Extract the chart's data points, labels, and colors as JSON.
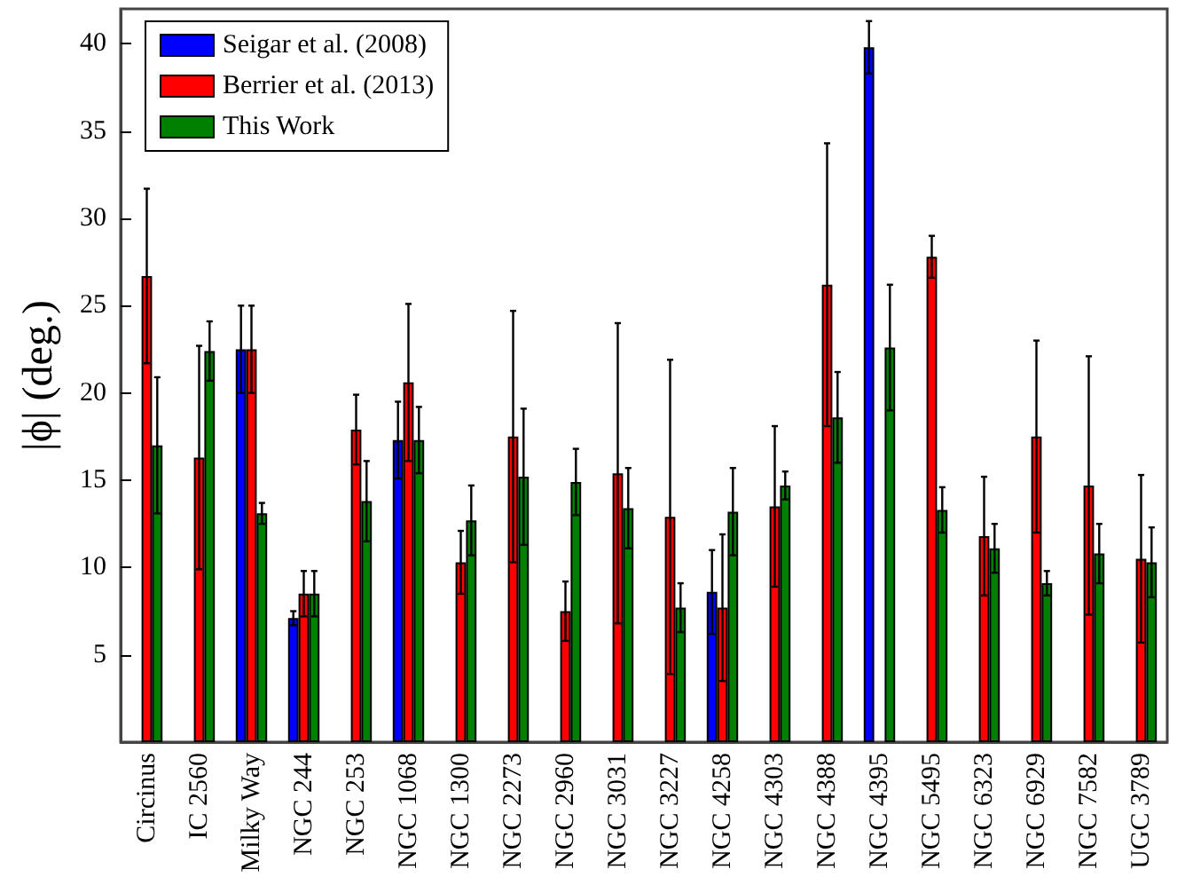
{
  "chart_data": {
    "type": "bar",
    "ylabel": "|ϕ| (deg.)",
    "categories": [
      "Circinus",
      "IC 2560",
      "Milky Way",
      "NGC 244",
      "NGC 253",
      "NGC 1068",
      "NGC 1300",
      "NGC 2273",
      "NGC 2960",
      "NGC 3031",
      "NGC 3227",
      "NGC 4258",
      "NGC 4303",
      "NGC 4388",
      "NGC 4395",
      "NGC 5495",
      "NGC 6323",
      "NGC 6929",
      "NGC 7582",
      "UGC 3789"
    ],
    "series": [
      {
        "name": "Seigar et al. (2008)",
        "color": "#0000ff",
        "values": [
          null,
          null,
          22.5,
          7.1,
          null,
          17.3,
          null,
          null,
          null,
          null,
          null,
          8.6,
          null,
          null,
          39.8,
          null,
          null,
          null,
          null,
          null
        ],
        "errors": [
          null,
          null,
          2.5,
          0.4,
          null,
          2.2,
          null,
          null,
          null,
          null,
          null,
          2.4,
          null,
          null,
          1.5,
          null,
          null,
          null,
          null,
          null
        ]
      },
      {
        "name": "Berrier et al. (2013)",
        "color": "#ff0000",
        "values": [
          26.7,
          16.3,
          22.5,
          8.5,
          17.9,
          20.6,
          10.3,
          17.5,
          7.5,
          15.4,
          12.9,
          7.7,
          13.5,
          26.2,
          null,
          27.8,
          11.8,
          17.5,
          14.7,
          10.5
        ],
        "errors": [
          5.0,
          6.4,
          2.5,
          1.3,
          2.0,
          4.5,
          1.8,
          7.2,
          1.7,
          8.6,
          9.0,
          4.2,
          4.6,
          8.1,
          null,
          1.2,
          3.4,
          5.5,
          7.4,
          4.8
        ]
      },
      {
        "name": "This Work",
        "color": "#008000",
        "values": [
          17.0,
          22.4,
          13.1,
          8.5,
          13.8,
          17.3,
          12.7,
          15.2,
          14.9,
          13.4,
          7.7,
          13.2,
          14.7,
          18.6,
          22.6,
          13.3,
          11.1,
          9.1,
          10.8,
          10.3
        ],
        "errors": [
          3.9,
          1.7,
          0.6,
          1.3,
          2.3,
          1.9,
          2.0,
          3.9,
          1.9,
          2.3,
          1.4,
          2.5,
          0.8,
          2.6,
          3.6,
          1.3,
          1.4,
          0.7,
          1.7,
          2.0
        ]
      }
    ],
    "ylim": [
      0,
      42
    ],
    "yticks": [
      5,
      10,
      15,
      20,
      25,
      30,
      35,
      40
    ],
    "grid": false,
    "legend": "top left"
  }
}
